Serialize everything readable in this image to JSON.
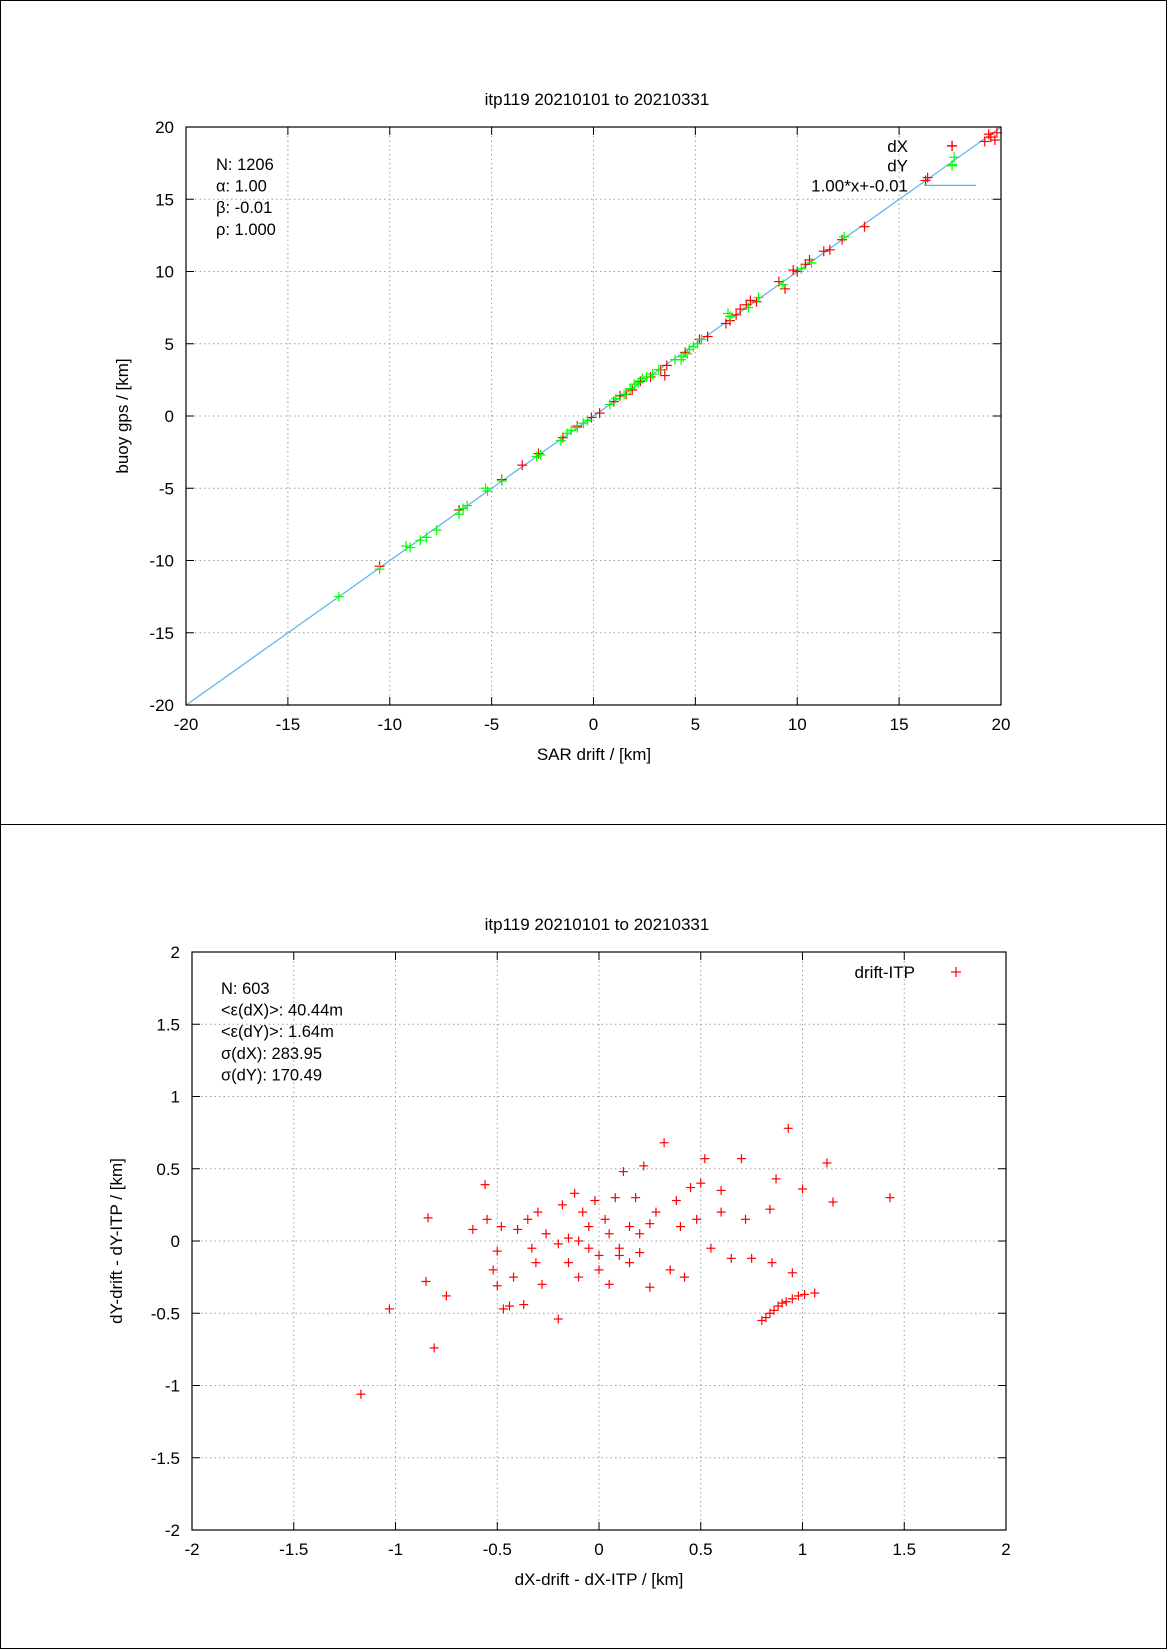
{
  "chart_data": [
    {
      "type": "scatter",
      "title": "itp119 20210101 to 20210331",
      "xlabel": "SAR drift / [km]",
      "ylabel": "buoy gps / [km]",
      "xlim": [
        -20,
        20
      ],
      "ylim": [
        -20,
        20
      ],
      "xticks": [
        "-20",
        "-15",
        "-10",
        "-5",
        "0",
        "5",
        "10",
        "15",
        "20"
      ],
      "yticks": [
        "-20",
        "-15",
        "-10",
        "-5",
        "0",
        "5",
        "10",
        "15",
        "20"
      ],
      "grid": true,
      "legend_position": "top-right",
      "stats": [
        "N: 1206",
        "α: 1.00",
        "β: -0.01",
        "ρ: 1.000"
      ],
      "fit": {
        "label": "1.00*x+-0.01",
        "slope": 1.0,
        "intercept": -0.01,
        "color": "#56b4e9"
      },
      "series": [
        {
          "name": "dX",
          "color": "#ff0000",
          "points": [
            [
              19.8,
              19.6
            ],
            [
              19.5,
              19.3
            ],
            [
              19.2,
              19.0
            ],
            [
              19.7,
              19.1
            ],
            [
              19.4,
              19.5
            ],
            [
              16.3,
              16.3
            ],
            [
              16.4,
              16.5
            ],
            [
              13.3,
              13.1
            ],
            [
              12.2,
              12.2
            ],
            [
              11.6,
              11.5
            ],
            [
              11.3,
              11.4
            ],
            [
              10.6,
              10.8
            ],
            [
              10.4,
              10.5
            ],
            [
              10.0,
              10.0
            ],
            [
              9.8,
              10.1
            ],
            [
              9.4,
              8.8
            ],
            [
              9.1,
              9.3
            ],
            [
              8.0,
              7.9
            ],
            [
              7.7,
              8.0
            ],
            [
              7.5,
              7.7
            ],
            [
              7.2,
              7.4
            ],
            [
              7.0,
              7.0
            ],
            [
              6.7,
              6.6
            ],
            [
              6.5,
              6.4
            ],
            [
              5.6,
              5.5
            ],
            [
              5.2,
              5.3
            ],
            [
              4.5,
              4.4
            ],
            [
              3.6,
              3.5
            ],
            [
              3.5,
              2.8
            ],
            [
              3.3,
              3.2
            ],
            [
              2.8,
              2.7
            ],
            [
              2.3,
              2.4
            ],
            [
              1.9,
              1.8
            ],
            [
              1.6,
              1.5
            ],
            [
              1.3,
              1.4
            ],
            [
              1.0,
              1.0
            ],
            [
              0.3,
              0.2
            ],
            [
              -0.1,
              -0.1
            ],
            [
              -0.8,
              -0.7
            ],
            [
              -1.5,
              -1.5
            ],
            [
              -2.7,
              -2.6
            ],
            [
              -3.5,
              -3.4
            ],
            [
              -4.5,
              -4.4
            ],
            [
              -6.6,
              -6.5
            ],
            [
              -10.5,
              -10.4
            ],
            [
              17.6,
              18.7
            ]
          ]
        },
        {
          "name": "dY",
          "color": "#00ff00",
          "points": [
            [
              17.6,
              17.4
            ],
            [
              17.7,
              17.9
            ],
            [
              12.3,
              12.4
            ],
            [
              10.7,
              10.6
            ],
            [
              10.2,
              10.2
            ],
            [
              9.3,
              9.1
            ],
            [
              8.1,
              8.2
            ],
            [
              7.6,
              7.5
            ],
            [
              6.7,
              6.9
            ],
            [
              6.6,
              7.1
            ],
            [
              5.3,
              5.3
            ],
            [
              5.1,
              5.0
            ],
            [
              4.9,
              4.8
            ],
            [
              4.7,
              4.6
            ],
            [
              4.6,
              4.3
            ],
            [
              4.4,
              4.1
            ],
            [
              4.3,
              3.9
            ],
            [
              4.0,
              3.9
            ],
            [
              3.2,
              3.2
            ],
            [
              2.9,
              2.9
            ],
            [
              2.6,
              2.7
            ],
            [
              2.4,
              2.6
            ],
            [
              2.2,
              2.3
            ],
            [
              2.0,
              2.2
            ],
            [
              1.8,
              1.9
            ],
            [
              1.5,
              1.5
            ],
            [
              1.1,
              1.2
            ],
            [
              0.8,
              0.8
            ],
            [
              -0.3,
              -0.3
            ],
            [
              -0.5,
              -0.5
            ],
            [
              -0.8,
              -0.8
            ],
            [
              -1.1,
              -1.0
            ],
            [
              -1.3,
              -1.2
            ],
            [
              -1.6,
              -1.7
            ],
            [
              -2.6,
              -2.7
            ],
            [
              -2.8,
              -2.8
            ],
            [
              -4.5,
              -4.5
            ],
            [
              -5.2,
              -5.2
            ],
            [
              -5.3,
              -5.0
            ],
            [
              -6.2,
              -6.2
            ],
            [
              -6.4,
              -6.4
            ],
            [
              -6.6,
              -6.8
            ],
            [
              -7.7,
              -7.9
            ],
            [
              -8.2,
              -8.4
            ],
            [
              -8.5,
              -8.6
            ],
            [
              -9.0,
              -9.1
            ],
            [
              -9.2,
              -9.0
            ],
            [
              -10.5,
              -10.6
            ],
            [
              -12.5,
              -12.5
            ]
          ]
        }
      ]
    },
    {
      "type": "scatter",
      "title": "itp119 20210101 to 20210331",
      "xlabel": "dX-drift - dX-ITP / [km]",
      "ylabel": "dY-drift - dY-ITP / [km]",
      "xlim": [
        -2,
        2
      ],
      "ylim": [
        -2,
        2
      ],
      "xticks": [
        "-2",
        "-1.5",
        "-1",
        "-0.5",
        "0",
        "0.5",
        "1",
        "1.5",
        "2"
      ],
      "yticks": [
        "-2",
        "-1.5",
        "-1",
        "-0.5",
        "0",
        "0.5",
        "1",
        "1.5",
        "2"
      ],
      "grid": true,
      "legend_position": "top-right",
      "stats": [
        "N: 603",
        "<ε(dX)>:  40.44m",
        "<ε(dY)>: 1.64m",
        "σ(dX):  283.95",
        "σ(dY):  170.49"
      ],
      "series": [
        {
          "name": "drift-ITP",
          "color": "#ff0000",
          "points": [
            [
              -1.17,
              -1.06
            ],
            [
              -1.03,
              -0.47
            ],
            [
              -0.84,
              0.16
            ],
            [
              -0.85,
              -0.28
            ],
            [
              -0.81,
              -0.74
            ],
            [
              -0.75,
              -0.38
            ],
            [
              -0.62,
              0.08
            ],
            [
              -0.56,
              0.39
            ],
            [
              -0.55,
              0.15
            ],
            [
              -0.52,
              -0.2
            ],
            [
              -0.5,
              -0.07
            ],
            [
              -0.48,
              0.1
            ],
            [
              -0.5,
              -0.31
            ],
            [
              -0.47,
              -0.47
            ],
            [
              -0.44,
              -0.45
            ],
            [
              -0.42,
              -0.25
            ],
            [
              -0.4,
              0.08
            ],
            [
              -0.37,
              -0.44
            ],
            [
              -0.35,
              0.15
            ],
            [
              -0.33,
              -0.05
            ],
            [
              -0.31,
              -0.15
            ],
            [
              -0.3,
              0.2
            ],
            [
              -0.28,
              -0.3
            ],
            [
              -0.26,
              0.05
            ],
            [
              -0.2,
              -0.54
            ],
            [
              -0.18,
              0.25
            ],
            [
              -0.15,
              -0.15
            ],
            [
              -0.12,
              0.33
            ],
            [
              -0.1,
              -0.25
            ],
            [
              -0.08,
              0.2
            ],
            [
              -0.05,
              -0.05
            ],
            [
              -0.02,
              0.28
            ],
            [
              0.0,
              -0.2
            ],
            [
              0.03,
              0.15
            ],
            [
              0.05,
              -0.3
            ],
            [
              0.08,
              0.3
            ],
            [
              0.1,
              -0.1
            ],
            [
              0.12,
              0.48
            ],
            [
              0.15,
              -0.15
            ],
            [
              0.18,
              0.3
            ],
            [
              0.2,
              0.05
            ],
            [
              0.22,
              0.52
            ],
            [
              0.25,
              -0.32
            ],
            [
              0.28,
              0.2
            ],
            [
              0.32,
              0.68
            ],
            [
              0.35,
              -0.2
            ],
            [
              0.38,
              0.28
            ],
            [
              0.4,
              0.1
            ],
            [
              0.42,
              -0.25
            ],
            [
              0.45,
              0.37
            ],
            [
              0.48,
              0.15
            ],
            [
              0.5,
              0.4
            ],
            [
              0.52,
              0.57
            ],
            [
              0.55,
              -0.05
            ],
            [
              0.6,
              0.2
            ],
            [
              0.65,
              -0.12
            ],
            [
              0.7,
              0.57
            ],
            [
              0.72,
              0.15
            ],
            [
              0.75,
              -0.12
            ],
            [
              0.8,
              -0.55
            ],
            [
              0.82,
              -0.53
            ],
            [
              0.84,
              -0.5
            ],
            [
              0.86,
              -0.48
            ],
            [
              0.88,
              -0.45
            ],
            [
              0.9,
              -0.43
            ],
            [
              0.92,
              -0.42
            ],
            [
              0.95,
              -0.4
            ],
            [
              0.98,
              -0.38
            ],
            [
              1.01,
              -0.37
            ],
            [
              1.06,
              -0.36
            ],
            [
              0.84,
              0.22
            ],
            [
              0.87,
              0.43
            ],
            [
              0.93,
              0.78
            ],
            [
              0.95,
              -0.22
            ],
            [
              1.0,
              0.36
            ],
            [
              1.12,
              0.54
            ],
            [
              1.15,
              0.27
            ],
            [
              1.43,
              0.3
            ],
            [
              0.85,
              -0.15
            ],
            [
              0.6,
              0.35
            ],
            [
              -0.05,
              0.1
            ],
            [
              -0.1,
              0.0
            ],
            [
              0.05,
              0.05
            ],
            [
              0.1,
              -0.05
            ],
            [
              -0.15,
              0.02
            ],
            [
              0.15,
              0.1
            ],
            [
              0.0,
              -0.1
            ],
            [
              -0.2,
              -0.02
            ],
            [
              0.2,
              -0.08
            ],
            [
              0.25,
              0.12
            ]
          ]
        }
      ]
    }
  ]
}
